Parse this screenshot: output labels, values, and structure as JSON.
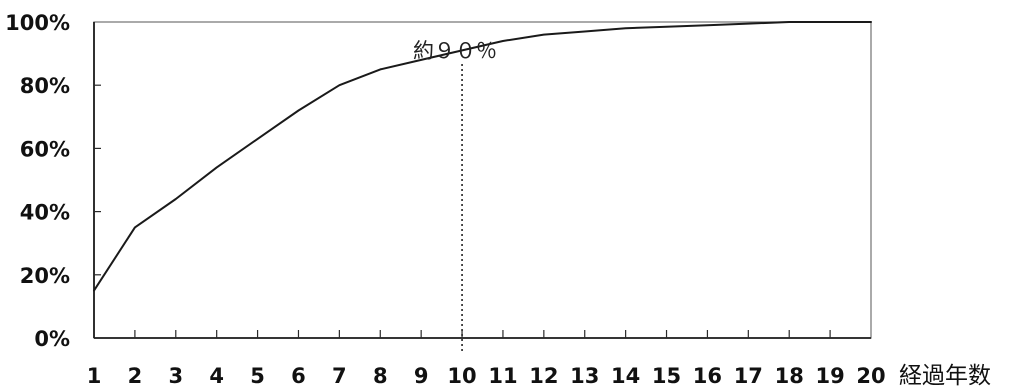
{
  "chart_data": {
    "type": "line",
    "title": "",
    "xlabel": "経過年数",
    "ylabel": "",
    "x": [
      1,
      2,
      3,
      4,
      5,
      6,
      7,
      8,
      9,
      10,
      11,
      12,
      13,
      14,
      15,
      16,
      17,
      18,
      19,
      20
    ],
    "series": [
      {
        "values": [
          15,
          35,
          44,
          54,
          63,
          72,
          80,
          85,
          88,
          91,
          94,
          96,
          97,
          98,
          98.5,
          99,
          99.5,
          100,
          100,
          100
        ]
      }
    ],
    "xlim": [
      1,
      20
    ],
    "ylim": [
      0,
      100
    ],
    "y_ticks": [
      0,
      20,
      40,
      60,
      80,
      100
    ],
    "y_tick_labels": [
      "0%",
      "20%",
      "40%",
      "60%",
      "80%",
      "100%"
    ],
    "x_tick_labels": [
      "1",
      "2",
      "3",
      "4",
      "5",
      "6",
      "7",
      "8",
      "9",
      "10",
      "11",
      "12",
      "13",
      "14",
      "15",
      "16",
      "17",
      "18",
      "19",
      "20"
    ],
    "grid": false,
    "reference_line": {
      "x": 10,
      "style": "dotted"
    },
    "annotation": {
      "text": "約９０％",
      "x": 10,
      "y": 90
    },
    "colors": {
      "line": "#1a1a1a",
      "frame": "#7d7d7d"
    }
  }
}
